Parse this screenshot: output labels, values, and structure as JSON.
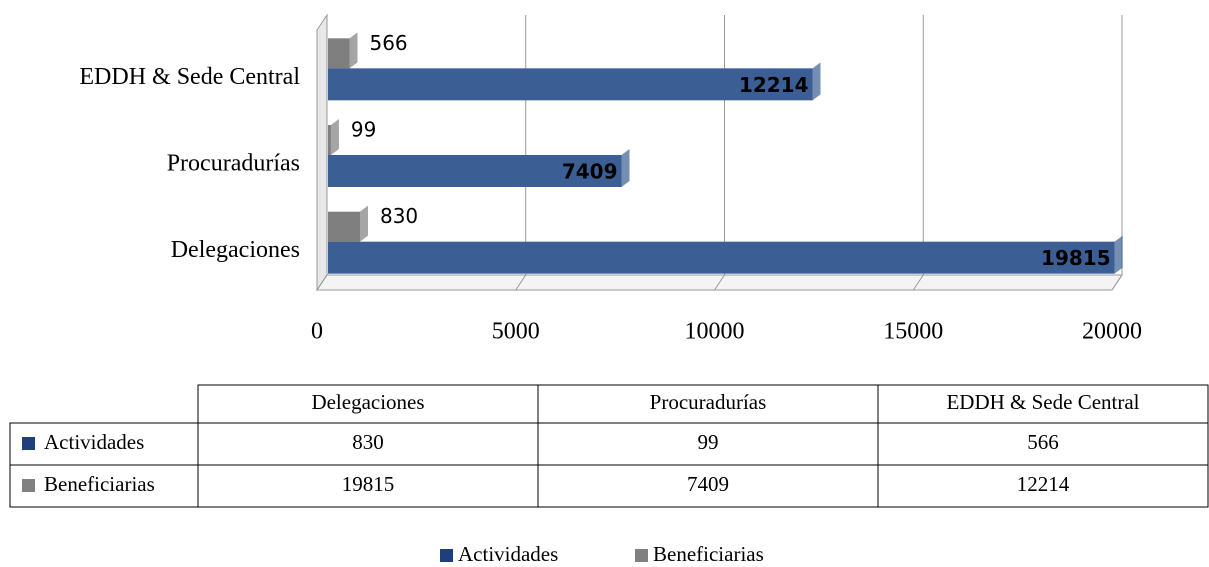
{
  "chart_data": {
    "type": "bar",
    "orientation": "horizontal",
    "categories": [
      "Delegaciones",
      "Procuradurías",
      "EDDH & Sede Central"
    ],
    "series": [
      {
        "name": "Actividades",
        "color": "#1f3f7a",
        "bar_color": "#7f7f7f",
        "values": [
          830,
          99,
          566
        ]
      },
      {
        "name": "Beneficiarias",
        "color": "#808080",
        "bar_color": "#3b5f94",
        "values": [
          19815,
          7409,
          12214
        ]
      }
    ],
    "xlim": [
      0,
      20000
    ],
    "xticks": [
      0,
      5000,
      10000,
      15000,
      20000
    ],
    "grid": true,
    "data_table": true,
    "legend": "bottom"
  }
}
